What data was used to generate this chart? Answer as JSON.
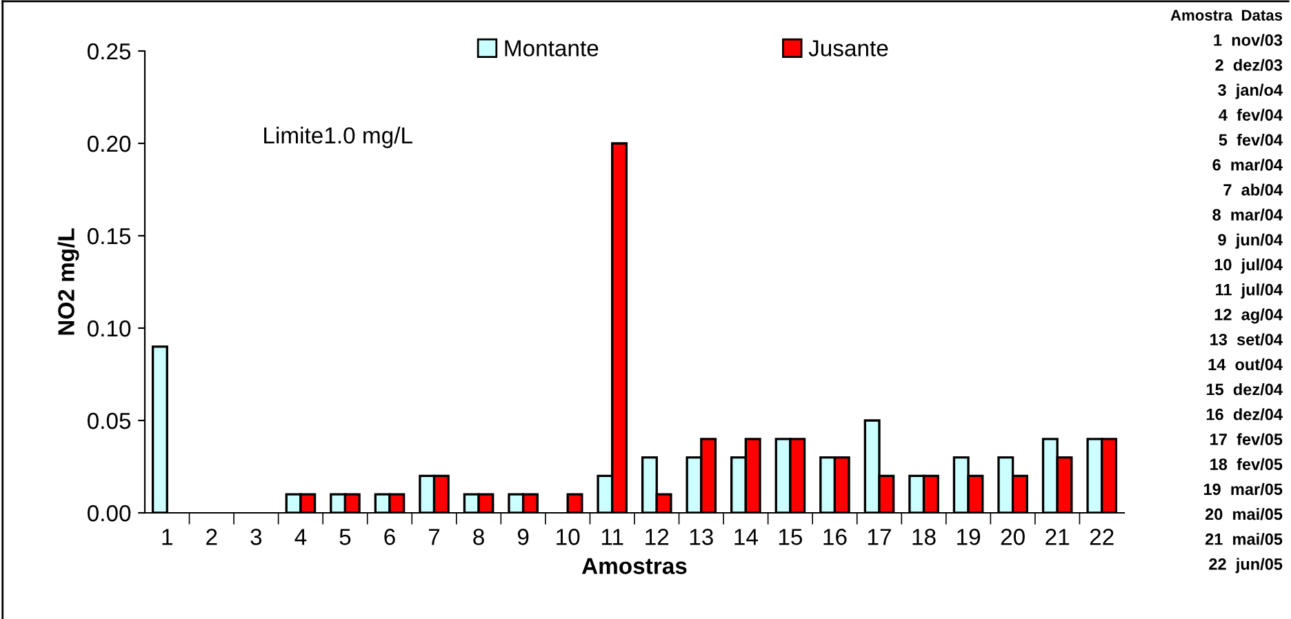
{
  "chart_data": [
    {
      "type": "bar",
      "xlabel": "Amostras",
      "ylabel": "NO2 mg/L",
      "categories": [
        "1",
        "2",
        "3",
        "4",
        "5",
        "6",
        "7",
        "8",
        "9",
        "10",
        "11",
        "12",
        "13",
        "14",
        "15",
        "16",
        "17",
        "18",
        "19",
        "20",
        "21",
        "22"
      ],
      "series": [
        {
          "name": "Montante",
          "color": "#ccffff",
          "values": [
            0.09,
            null,
            null,
            0.01,
            0.01,
            0.01,
            0.02,
            0.01,
            0.01,
            null,
            0.02,
            0.03,
            0.03,
            0.03,
            0.04,
            0.03,
            0.05,
            0.02,
            0.03,
            0.03,
            0.04,
            0.04
          ]
        },
        {
          "name": "Jusante",
          "color": "#ff0000",
          "values": [
            null,
            null,
            null,
            0.01,
            0.01,
            0.01,
            0.02,
            0.01,
            0.01,
            0.01,
            0.2,
            0.01,
            0.04,
            0.04,
            0.04,
            0.03,
            0.02,
            0.02,
            0.02,
            0.02,
            0.03,
            0.04
          ]
        }
      ],
      "ylim": [
        0,
        0.25
      ],
      "yticks": [
        {
          "value": 0,
          "label": "0.00"
        },
        {
          "value": 0.05,
          "label": "0.05"
        },
        {
          "value": 0.1,
          "label": "0.10"
        },
        {
          "value": 0.15,
          "label": "0.15"
        },
        {
          "value": 0.2,
          "label": "0.20"
        },
        {
          "value": 0.25,
          "label": "0.25"
        }
      ],
      "annotations": [
        "Limite1.0 mg/L"
      ],
      "legend": "top",
      "grid": false
    },
    {
      "type": "other",
      "annotations": [
        "Amostra  Datas",
        "1  nov/03",
        "2  dez/03",
        "3  jan/o4",
        "4  fev/04",
        "5  fev/04",
        "6  mar/04",
        "7  ab/04",
        "8  mar/04",
        "9  jun/04",
        "10  jul/04",
        "11  jul/04",
        "12  ag/04",
        "13  set/04",
        "14  out/04",
        "15  dez/04",
        "16  dez/04",
        "17  fev/05",
        "18  fev/05",
        "19  mar/05",
        "20  mai/05",
        "21  mai/05",
        "22  jun/05"
      ]
    }
  ]
}
